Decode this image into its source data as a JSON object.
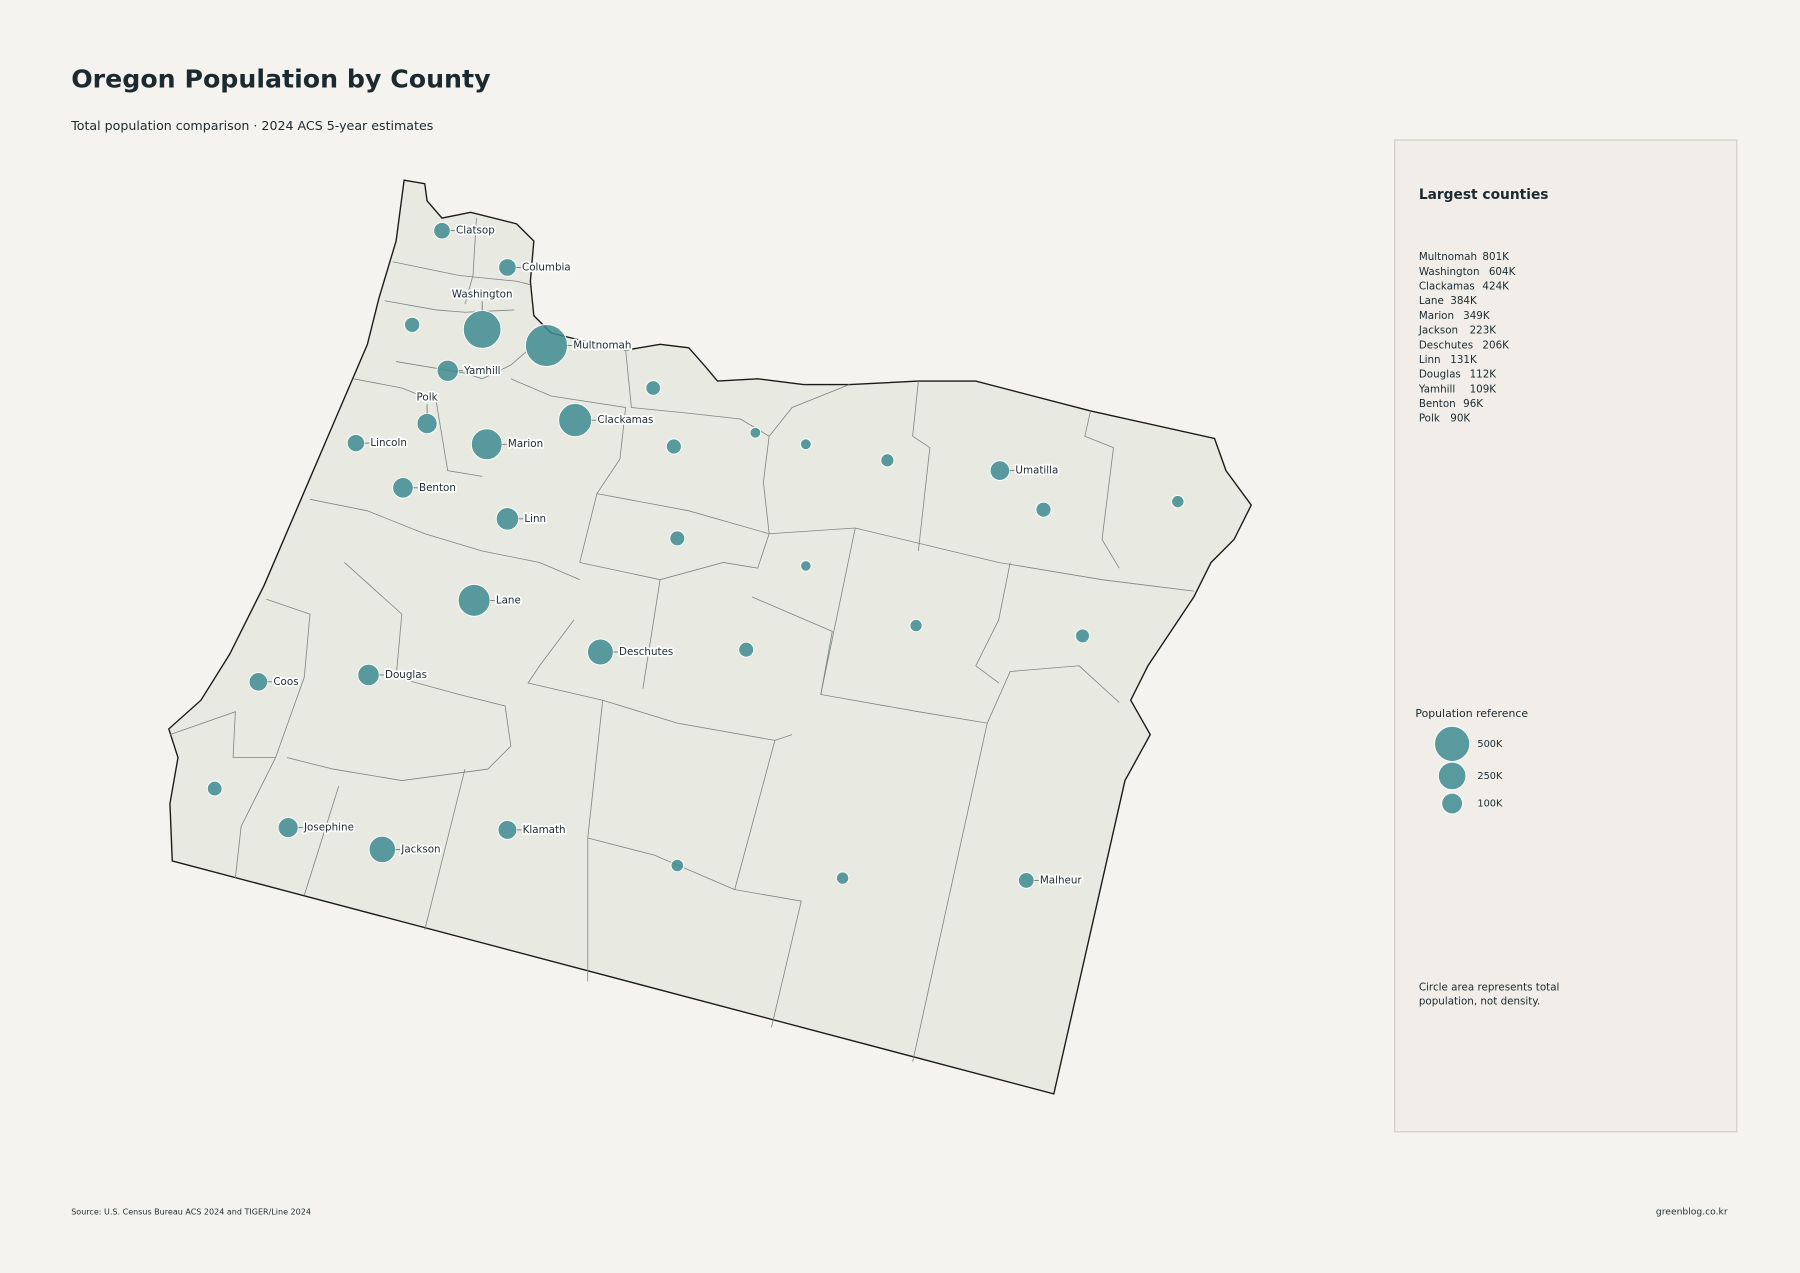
{
  "header": {
    "title": "Oregon Population by County",
    "subtitle": "Total population comparison · 2024 ACS 5-year estimates"
  },
  "map": {
    "counties": [
      {
        "label": "Clatsop",
        "population": 41000
      },
      {
        "label": "Columbia",
        "population": 53000
      },
      {
        "label": "Washington",
        "population": 604000
      },
      {
        "label": "Multnomah",
        "population": 801000
      },
      {
        "label": "Yamhill",
        "population": 109000
      },
      {
        "label": "Polk",
        "population": 90000
      },
      {
        "label": "Clackamas",
        "population": 424000
      },
      {
        "label": "Lincoln",
        "population": 50000
      },
      {
        "label": "Marion",
        "population": 349000
      },
      {
        "label": "Benton",
        "population": 96000
      },
      {
        "label": "Linn",
        "population": 131000
      },
      {
        "label": "Umatilla",
        "population": 80000
      },
      {
        "label": "Lane",
        "population": 384000
      },
      {
        "label": "Deschutes",
        "population": 206000
      },
      {
        "label": "Coos",
        "population": 65000
      },
      {
        "label": "Douglas",
        "population": 112000
      },
      {
        "label": "Josephine",
        "population": 88000
      },
      {
        "label": "Jackson",
        "population": 223000
      },
      {
        "label": "Klamath",
        "population": 70000
      },
      {
        "label": "Malheur",
        "population": 32000
      },
      {
        "label": null,
        "population": 27000
      },
      {
        "label": null,
        "population": 23000
      },
      {
        "label": null,
        "population": 26000
      },
      {
        "label": null,
        "population": 1900
      },
      {
        "label": null,
        "population": 2000
      },
      {
        "label": null,
        "population": 12000
      },
      {
        "label": null,
        "population": 26000
      },
      {
        "label": null,
        "population": 7500
      },
      {
        "label": null,
        "population": 25000
      },
      {
        "label": null,
        "population": 1400
      },
      {
        "label": null,
        "population": 7200
      },
      {
        "label": null,
        "population": 17000
      },
      {
        "label": null,
        "population": 25000
      },
      {
        "label": null,
        "population": 23000
      },
      {
        "label": null,
        "population": 8200
      },
      {
        "label": null,
        "population": 7500
      }
    ]
  },
  "sidebar": {
    "title": "Largest counties",
    "list": [
      {
        "name": "Multnomah",
        "value": "801K"
      },
      {
        "name": "Washington",
        "value": "604K"
      },
      {
        "name": "Clackamas",
        "value": "424K"
      },
      {
        "name": "Lane",
        "value": "384K"
      },
      {
        "name": "Marion",
        "value": "349K"
      },
      {
        "name": "Jackson",
        "value": "223K"
      },
      {
        "name": "Deschutes",
        "value": "206K"
      },
      {
        "name": "Linn",
        "value": "131K"
      },
      {
        "name": "Douglas",
        "value": "112K"
      },
      {
        "name": "Yamhill",
        "value": "109K"
      },
      {
        "name": "Benton",
        "value": "96K"
      },
      {
        "name": "Polk",
        "value": "90K"
      }
    ],
    "legend": {
      "title": "Population reference",
      "items": [
        {
          "value": 500000,
          "label": "500K"
        },
        {
          "value": 250000,
          "label": "250K"
        },
        {
          "value": 100000,
          "label": "100K"
        }
      ]
    },
    "note": "Circle area represents total population, not density."
  },
  "footer": {
    "source": "Source: U.S. Census Bureau ACS 2024 and TIGER/Line 2024",
    "credit": "greenblog.co.kr"
  }
}
